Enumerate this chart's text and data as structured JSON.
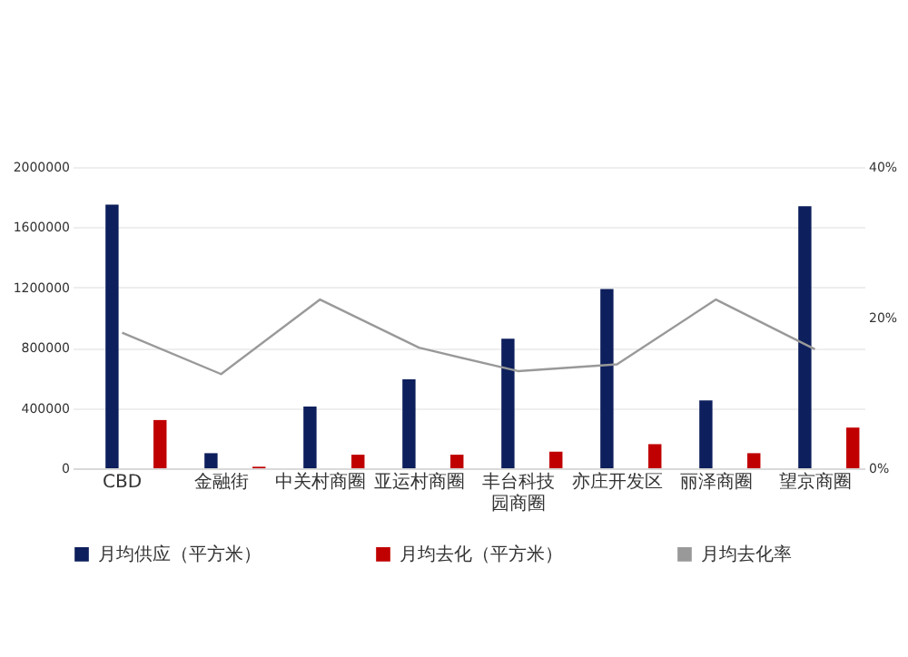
{
  "chart_data": {
    "type": "bar",
    "categories": [
      "CBD",
      "金融街",
      "中关村商圈",
      "亚运村商圈",
      "丰台科技园商圈",
      "亦庄开发区",
      "丽泽商圈",
      "望京商圈"
    ],
    "series": [
      {
        "name": "月均供应（平方米）",
        "color": "#0d1f5c",
        "values": [
          1750000,
          100000,
          410000,
          590000,
          860000,
          1190000,
          450000,
          1740000
        ]
      },
      {
        "name": "月均去化（平方米）",
        "color": "#c00000",
        "values": [
          320000,
          10000,
          90000,
          90000,
          110000,
          160000,
          100000,
          270000
        ]
      },
      {
        "name": "月均去化率",
        "color": "#999999",
        "type": "line",
        "axis": "y2",
        "values": [
          18.0,
          12.5,
          22.4,
          16.0,
          12.9,
          13.8,
          22.4,
          15.8
        ]
      }
    ],
    "ylim": [
      0,
      2000000
    ],
    "yticks": [
      0,
      400000,
      800000,
      1200000,
      1600000,
      2000000
    ],
    "y2lim": [
      0,
      40
    ],
    "y2ticks": [
      {
        "value": 0,
        "label": "0%"
      },
      {
        "value": 20,
        "label": "20%"
      },
      {
        "value": 40,
        "label": "40%"
      }
    ],
    "grid": "y",
    "legend": "bottom"
  }
}
